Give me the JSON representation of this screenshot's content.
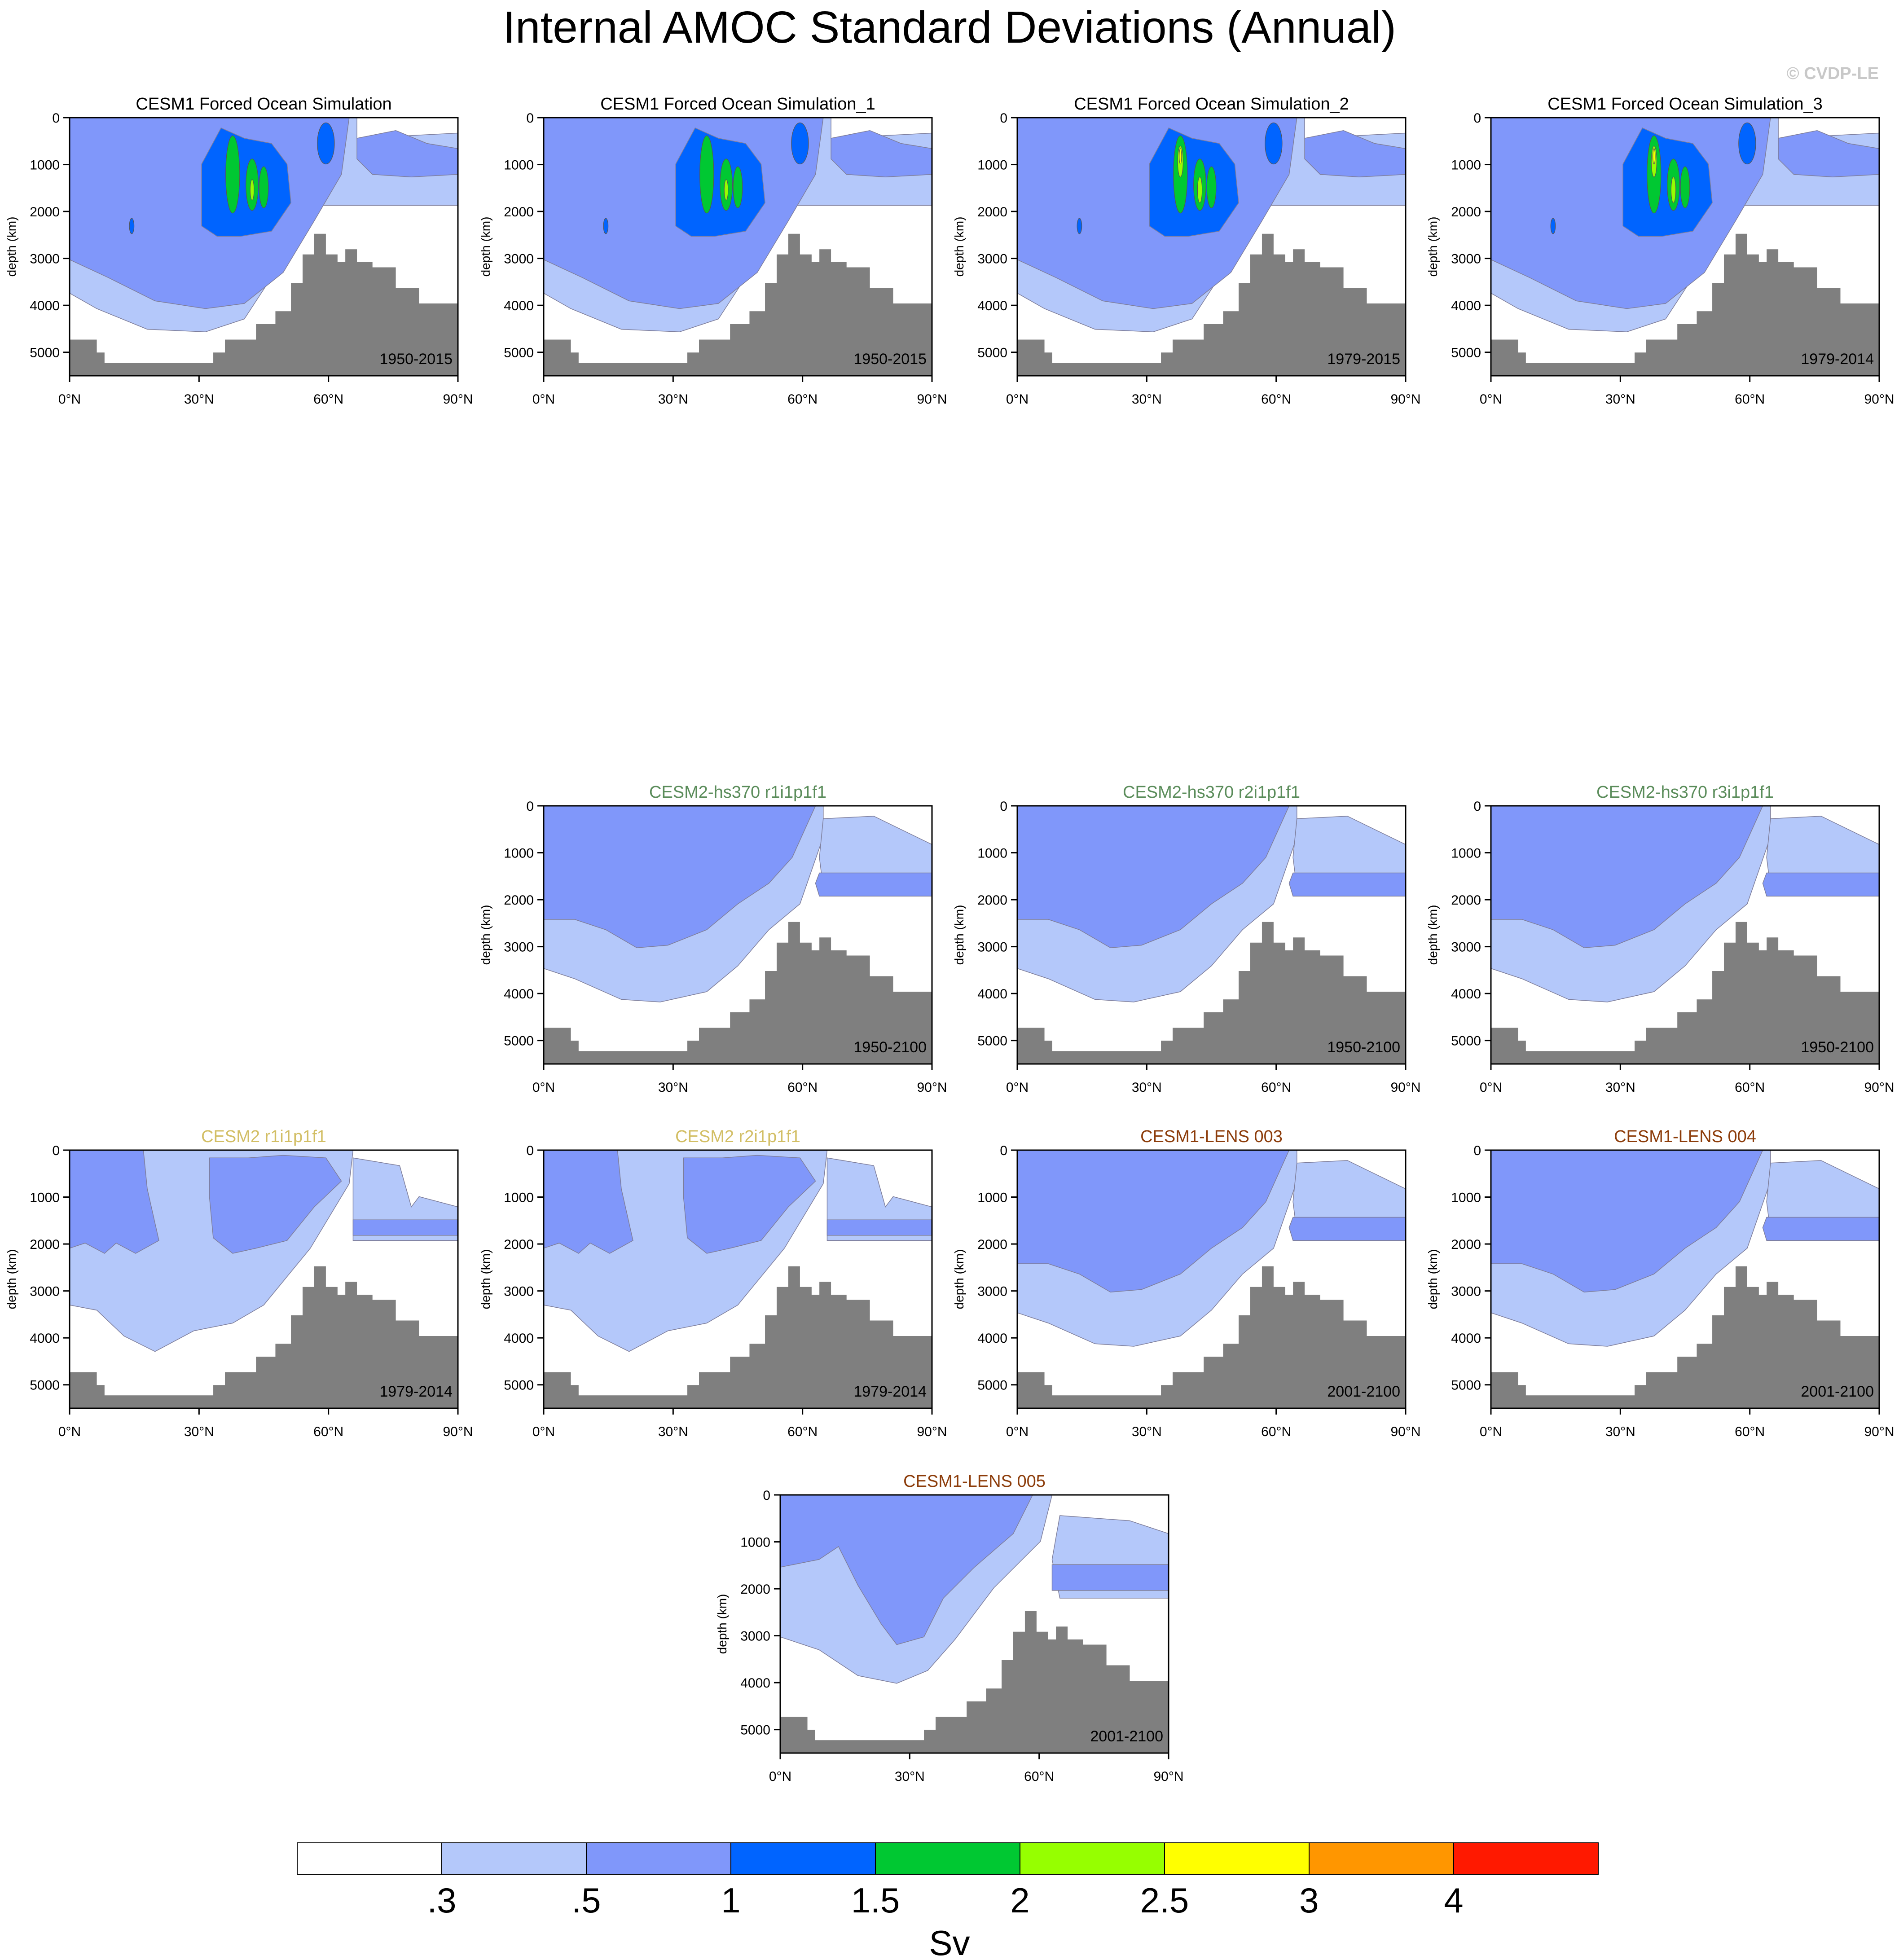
{
  "title": "Internal AMOC Standard Deviations (Annual)",
  "watermark": "© CVDP-LE",
  "colors": {
    "band_0": "#ffffff",
    "band_1": "#b4c8fa",
    "band_2": "#8097fa",
    "band_3": "#0064ff",
    "band_4": "#00c832",
    "band_5": "#96ff00",
    "band_6": "#ffff00",
    "band_7": "#ff9600",
    "band_8": "#ff1900",
    "topography": "#7f7f7f",
    "title_black": "#000000",
    "title_green": "#5a8c5a",
    "title_gold": "#d2be64",
    "title_brown": "#8c3c0a"
  },
  "colorbar": {
    "labels": [
      ".3",
      ".5",
      "1",
      "1.5",
      "2",
      "2.5",
      "3",
      "4"
    ],
    "units": "Sv"
  },
  "chart_data": [
    {
      "type": "heatmap",
      "title": "CESM1 Forced Ocean Simulation",
      "title_color": "black",
      "period": "1950-2015",
      "pattern": "obs",
      "core": "green",
      "ylabel": "depth (km)",
      "yticks": [
        "0",
        "1000",
        "2000",
        "3000",
        "4000",
        "5000"
      ],
      "xticks": [
        "0°N",
        "30°N",
        "60°N",
        "90°N"
      ],
      "xlim": [
        0,
        90
      ],
      "ylim": [
        5500,
        0
      ],
      "levels": [
        0.3,
        0.5,
        1,
        1.5,
        2,
        2.5,
        3,
        4
      ]
    },
    {
      "type": "heatmap",
      "title": "CESM1 Forced Ocean Simulation_1",
      "title_color": "black",
      "period": "1950-2015",
      "pattern": "obs",
      "core": "green",
      "ylabel": "depth (km)",
      "yticks": [
        "0",
        "1000",
        "2000",
        "3000",
        "4000",
        "5000"
      ],
      "xticks": [
        "0°N",
        "30°N",
        "60°N",
        "90°N"
      ],
      "xlim": [
        0,
        90
      ],
      "ylim": [
        5500,
        0
      ],
      "levels": [
        0.3,
        0.5,
        1,
        1.5,
        2,
        2.5,
        3,
        4
      ]
    },
    {
      "type": "heatmap",
      "title": "CESM1 Forced Ocean Simulation_2",
      "title_color": "black",
      "period": "1979-2015",
      "pattern": "obs",
      "core": "green-yellow",
      "ylabel": "depth (km)",
      "yticks": [
        "0",
        "1000",
        "2000",
        "3000",
        "4000",
        "5000"
      ],
      "xticks": [
        "0°N",
        "30°N",
        "60°N",
        "90°N"
      ],
      "xlim": [
        0,
        90
      ],
      "ylim": [
        5500,
        0
      ],
      "levels": [
        0.3,
        0.5,
        1,
        1.5,
        2,
        2.5,
        3,
        4
      ]
    },
    {
      "type": "heatmap",
      "title": "CESM1 Forced Ocean Simulation_3",
      "title_color": "black",
      "period": "1979-2014",
      "pattern": "obs",
      "core": "green-yellow",
      "ylabel": "depth (km)",
      "yticks": [
        "0",
        "1000",
        "2000",
        "3000",
        "4000",
        "5000"
      ],
      "xticks": [
        "0°N",
        "30°N",
        "60°N",
        "90°N"
      ],
      "xlim": [
        0,
        90
      ],
      "ylim": [
        5500,
        0
      ],
      "levels": [
        0.3,
        0.5,
        1,
        1.5,
        2,
        2.5,
        3,
        4
      ]
    },
    {
      "type": "heatmap",
      "title": "CESM2-hs370 r1i1p1f1",
      "title_color": "green",
      "period": "1950-2100",
      "pattern": "model",
      "ylabel": "depth (km)",
      "yticks": [
        "0",
        "1000",
        "2000",
        "3000",
        "4000",
        "5000"
      ],
      "xticks": [
        "0°N",
        "30°N",
        "60°N",
        "90°N"
      ],
      "xlim": [
        0,
        90
      ],
      "ylim": [
        5500,
        0
      ],
      "levels": [
        0.3,
        0.5,
        1,
        1.5,
        2,
        2.5,
        3,
        4
      ]
    },
    {
      "type": "heatmap",
      "title": "CESM2-hs370 r2i1p1f1",
      "title_color": "green",
      "period": "1950-2100",
      "pattern": "model",
      "ylabel": "depth (km)",
      "yticks": [
        "0",
        "1000",
        "2000",
        "3000",
        "4000",
        "5000"
      ],
      "xticks": [
        "0°N",
        "30°N",
        "60°N",
        "90°N"
      ],
      "xlim": [
        0,
        90
      ],
      "ylim": [
        5500,
        0
      ],
      "levels": [
        0.3,
        0.5,
        1,
        1.5,
        2,
        2.5,
        3,
        4
      ]
    },
    {
      "type": "heatmap",
      "title": "CESM2-hs370 r3i1p1f1",
      "title_color": "green",
      "period": "1950-2100",
      "pattern": "model",
      "ylabel": "depth (km)",
      "yticks": [
        "0",
        "1000",
        "2000",
        "3000",
        "4000",
        "5000"
      ],
      "xticks": [
        "0°N",
        "30°N",
        "60°N",
        "90°N"
      ],
      "xlim": [
        0,
        90
      ],
      "ylim": [
        5500,
        0
      ],
      "levels": [
        0.3,
        0.5,
        1,
        1.5,
        2,
        2.5,
        3,
        4
      ]
    },
    {
      "type": "heatmap",
      "title": "CESM2 r1i1p1f1",
      "title_color": "gold",
      "period": "1979-2014",
      "pattern": "weak",
      "ylabel": "depth (km)",
      "yticks": [
        "0",
        "1000",
        "2000",
        "3000",
        "4000",
        "5000"
      ],
      "xticks": [
        "0°N",
        "30°N",
        "60°N",
        "90°N"
      ],
      "xlim": [
        0,
        90
      ],
      "ylim": [
        5500,
        0
      ],
      "levels": [
        0.3,
        0.5,
        1,
        1.5,
        2,
        2.5,
        3,
        4
      ]
    },
    {
      "type": "heatmap",
      "title": "CESM2 r2i1p1f1",
      "title_color": "gold",
      "period": "1979-2014",
      "pattern": "weak",
      "ylabel": "depth (km)",
      "yticks": [
        "0",
        "1000",
        "2000",
        "3000",
        "4000",
        "5000"
      ],
      "xticks": [
        "0°N",
        "30°N",
        "60°N",
        "90°N"
      ],
      "xlim": [
        0,
        90
      ],
      "ylim": [
        5500,
        0
      ],
      "levels": [
        0.3,
        0.5,
        1,
        1.5,
        2,
        2.5,
        3,
        4
      ]
    },
    {
      "type": "heatmap",
      "title": "CESM1-LENS 003",
      "title_color": "brown",
      "period": "2001-2100",
      "pattern": "model",
      "ylabel": "depth (km)",
      "yticks": [
        "0",
        "1000",
        "2000",
        "3000",
        "4000",
        "5000"
      ],
      "xticks": [
        "0°N",
        "30°N",
        "60°N",
        "90°N"
      ],
      "xlim": [
        0,
        90
      ],
      "ylim": [
        5500,
        0
      ],
      "levels": [
        0.3,
        0.5,
        1,
        1.5,
        2,
        2.5,
        3,
        4
      ]
    },
    {
      "type": "heatmap",
      "title": "CESM1-LENS 004",
      "title_color": "brown",
      "period": "2001-2100",
      "pattern": "model",
      "ylabel": "depth (km)",
      "yticks": [
        "0",
        "1000",
        "2000",
        "3000",
        "4000",
        "5000"
      ],
      "xticks": [
        "0°N",
        "30°N",
        "60°N",
        "90°N"
      ],
      "xlim": [
        0,
        90
      ],
      "ylim": [
        5500,
        0
      ],
      "levels": [
        0.3,
        0.5,
        1,
        1.5,
        2,
        2.5,
        3,
        4
      ]
    },
    {
      "type": "heatmap",
      "title": "CESM1-LENS 005",
      "title_color": "brown",
      "period": "2001-2100",
      "pattern": "lens5",
      "ylabel": "depth (km)",
      "yticks": [
        "0",
        "1000",
        "2000",
        "3000",
        "4000",
        "5000"
      ],
      "xticks": [
        "0°N",
        "30°N",
        "60°N",
        "90°N"
      ],
      "xlim": [
        0,
        90
      ],
      "ylim": [
        5500,
        0
      ],
      "levels": [
        0.3,
        0.5,
        1,
        1.5,
        2,
        2.5,
        3,
        4
      ]
    }
  ]
}
